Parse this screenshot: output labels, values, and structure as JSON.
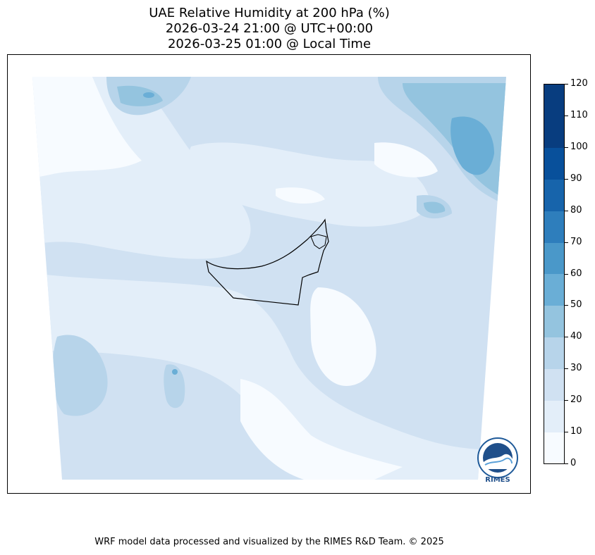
{
  "title": {
    "line1": "UAE Relative Humidity at 200 hPa (%)",
    "line2": "2026-03-24 21:00 @ UTC+00:00",
    "line3": "2026-03-25 01:00 @ Local Time"
  },
  "colorbar": {
    "ticks": [
      "0",
      "10",
      "20",
      "30",
      "40",
      "50",
      "60",
      "70",
      "80",
      "90",
      "100",
      "110",
      "120"
    ],
    "colors": [
      "#f7fbff",
      "#e3eef9",
      "#d0e1f2",
      "#b7d4ea",
      "#94c4df",
      "#6aaed6",
      "#4a98c9",
      "#2e7ebc",
      "#1764ab",
      "#08509b",
      "#083d7f"
    ]
  },
  "logo": {
    "text": "RIMES"
  },
  "footer": {
    "credit": "WRF model data processed and visualized by the RIMES R&D Team. © 2025"
  }
}
